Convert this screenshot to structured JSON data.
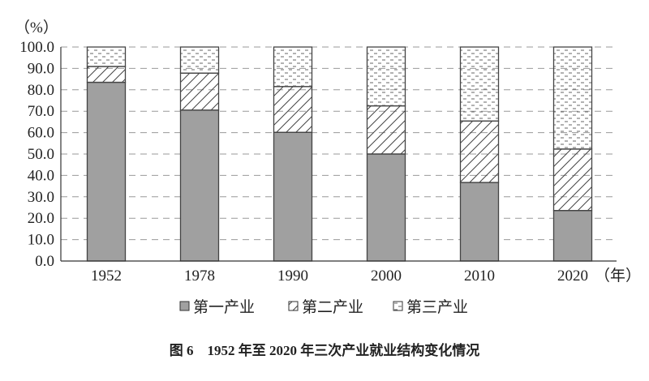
{
  "chart_data": {
    "type": "bar",
    "stacked": true,
    "title": "图 6　1952 年至 2020 年三次产业就业结构变化情况",
    "ylabel": "（%）",
    "xlabel": "（年）",
    "ylim": [
      0,
      100
    ],
    "yticks": [
      "0.0",
      "10.0",
      "20.0",
      "30.0",
      "40.0",
      "50.0",
      "60.0",
      "70.0",
      "80.0",
      "90.0",
      "100.0"
    ],
    "grid": "horizontal dashed",
    "legend_position": "bottom",
    "categories": [
      "1952",
      "1978",
      "1990",
      "2000",
      "2010",
      "2020"
    ],
    "series": [
      {
        "name": "第一产业",
        "pattern": "solid-gray",
        "color": "#a0a0a0",
        "values": [
          83.5,
          70.5,
          60.1,
          50.0,
          36.7,
          23.6
        ]
      },
      {
        "name": "第二产业",
        "pattern": "diagonal-hatch",
        "color": "#ffffff",
        "values": [
          7.4,
          17.3,
          21.4,
          22.5,
          28.7,
          28.7
        ]
      },
      {
        "name": "第三产业",
        "pattern": "dashed-dots",
        "color": "#ffffff",
        "values": [
          9.1,
          12.2,
          18.5,
          27.5,
          34.6,
          47.7
        ]
      }
    ]
  }
}
